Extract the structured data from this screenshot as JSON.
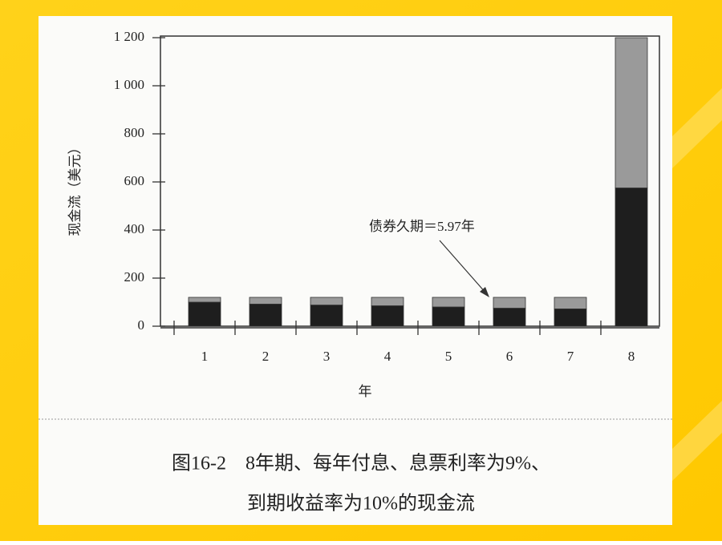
{
  "chart_data": {
    "type": "stacked_bar",
    "annotation": "债券久期＝5.97年",
    "x_label": "年",
    "y_label": "现金流（美元）",
    "caption": [
      "图16-2　8年期、每年付息、息票利率为9%、",
      "到期收益率为10%的现金流"
    ],
    "categories": [
      "1",
      "2",
      "3",
      "4",
      "5",
      "6",
      "7",
      "8"
    ],
    "series": [
      {
        "color": "#1e1e1e",
        "values": [
          100,
          92,
          88,
          85,
          80,
          75,
          72,
          575
        ]
      },
      {
        "color": "#9a9a9a",
        "values": [
          20,
          28,
          32,
          35,
          40,
          45,
          48,
          625
        ]
      }
    ],
    "ylim": [
      0,
      1200
    ],
    "yticks": [
      0,
      200,
      400,
      600,
      800,
      {
        "value": 1000,
        "label": "1 000"
      },
      {
        "value": 1200,
        "label": "1 200"
      }
    ]
  }
}
